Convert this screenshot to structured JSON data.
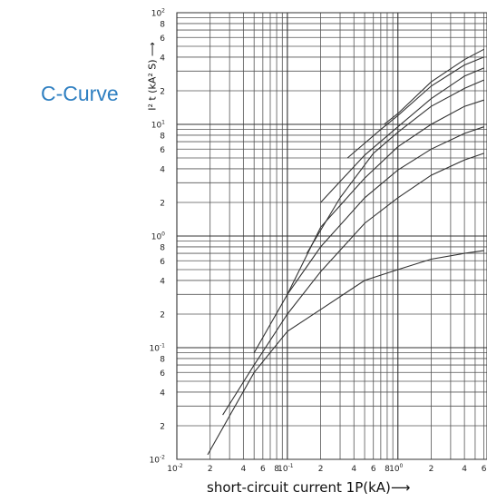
{
  "title": "C-Curve",
  "chart_data": {
    "type": "line",
    "x_scale": "log",
    "y_scale": "log",
    "grid": true,
    "xlabel": "short-circuit current 1P(kA)",
    "ylabel": "I² t (kA² S)",
    "xlim": [
      0.01,
      6
    ],
    "ylim": [
      0.01,
      100
    ],
    "x_ticks": [
      {
        "v": 0.01,
        "base": "10",
        "exp": "-2"
      },
      {
        "v": 0.02,
        "text": "2"
      },
      {
        "v": 0.04,
        "text": "4"
      },
      {
        "v": 0.06,
        "text": "6"
      },
      {
        "v": 0.08,
        "text": "8"
      },
      {
        "v": 0.1,
        "base": "10",
        "exp": "-1"
      },
      {
        "v": 0.2,
        "text": "2"
      },
      {
        "v": 0.4,
        "text": "4"
      },
      {
        "v": 0.6,
        "text": "6"
      },
      {
        "v": 0.8,
        "text": "8"
      },
      {
        "v": 1,
        "base": "10",
        "exp": "0"
      },
      {
        "v": 2,
        "text": "2"
      },
      {
        "v": 4,
        "text": "4"
      },
      {
        "v": 6,
        "text": "6"
      }
    ],
    "y_ticks": [
      {
        "v": 0.01,
        "base": "10",
        "exp": "-2"
      },
      {
        "v": 0.02,
        "text": "2"
      },
      {
        "v": 0.04,
        "text": "4"
      },
      {
        "v": 0.06,
        "text": "6"
      },
      {
        "v": 0.08,
        "text": "8"
      },
      {
        "v": 0.1,
        "base": "10",
        "exp": "-1"
      },
      {
        "v": 0.2,
        "text": "2"
      },
      {
        "v": 0.4,
        "text": "4"
      },
      {
        "v": 0.6,
        "text": "6"
      },
      {
        "v": 0.8,
        "text": "8"
      },
      {
        "v": 1,
        "base": "10",
        "exp": "0"
      },
      {
        "v": 2,
        "text": "2"
      },
      {
        "v": 4,
        "text": "4"
      },
      {
        "v": 6,
        "text": "6"
      },
      {
        "v": 8,
        "text": "8"
      },
      {
        "v": 10,
        "base": "10",
        "exp": "1"
      },
      {
        "v": 20,
        "text": "2"
      },
      {
        "v": 40,
        "text": "4"
      },
      {
        "v": 60,
        "text": "6"
      },
      {
        "v": 80,
        "text": "8"
      },
      {
        "v": 100,
        "base": "10",
        "exp": "2"
      }
    ],
    "series": [
      {
        "points": [
          [
            0.019,
            0.011
          ],
          [
            0.05,
            0.06
          ],
          [
            0.1,
            0.14
          ],
          [
            0.2,
            0.22
          ],
          [
            0.5,
            0.4
          ],
          [
            1,
            0.5
          ],
          [
            2,
            0.62
          ],
          [
            4,
            0.7
          ],
          [
            6,
            0.74
          ]
        ]
      },
      {
        "points": [
          [
            0.026,
            0.025
          ],
          [
            0.05,
            0.07
          ],
          [
            0.1,
            0.2
          ],
          [
            0.2,
            0.48
          ],
          [
            0.5,
            1.3
          ],
          [
            1,
            2.2
          ],
          [
            2,
            3.5
          ],
          [
            4,
            4.8
          ],
          [
            6,
            5.5
          ]
        ]
      },
      {
        "points": [
          [
            0.05,
            0.09
          ],
          [
            0.1,
            0.3
          ],
          [
            0.2,
            0.8
          ],
          [
            0.5,
            2.2
          ],
          [
            1,
            3.9
          ],
          [
            2,
            6
          ],
          [
            4,
            8.3
          ],
          [
            6,
            9.5
          ]
        ]
      },
      {
        "points": [
          [
            0.1,
            0.3
          ],
          [
            0.2,
            1.2
          ],
          [
            0.5,
            3.3
          ],
          [
            1,
            6.3
          ],
          [
            2,
            10
          ],
          [
            4,
            14.5
          ],
          [
            6,
            16.5
          ]
        ]
      },
      {
        "points": [
          [
            0.15,
            0.7
          ],
          [
            0.3,
            2.2
          ],
          [
            0.6,
            5.5
          ],
          [
            1,
            8.5
          ],
          [
            2,
            14.5
          ],
          [
            4,
            21
          ],
          [
            6,
            25
          ]
        ]
      },
      {
        "points": [
          [
            0.2,
            2
          ],
          [
            0.5,
            5.3
          ],
          [
            1,
            9.5
          ],
          [
            2,
            17
          ],
          [
            4,
            27
          ],
          [
            6,
            32
          ]
        ]
      },
      {
        "points": [
          [
            0.35,
            5
          ],
          [
            0.7,
            9
          ],
          [
            1,
            12
          ],
          [
            2,
            22
          ],
          [
            4,
            34
          ],
          [
            6,
            40
          ]
        ]
      },
      {
        "points": [
          [
            0.75,
            10
          ],
          [
            1,
            12.5
          ],
          [
            2,
            24
          ],
          [
            4,
            38
          ],
          [
            6,
            47
          ]
        ]
      }
    ]
  }
}
